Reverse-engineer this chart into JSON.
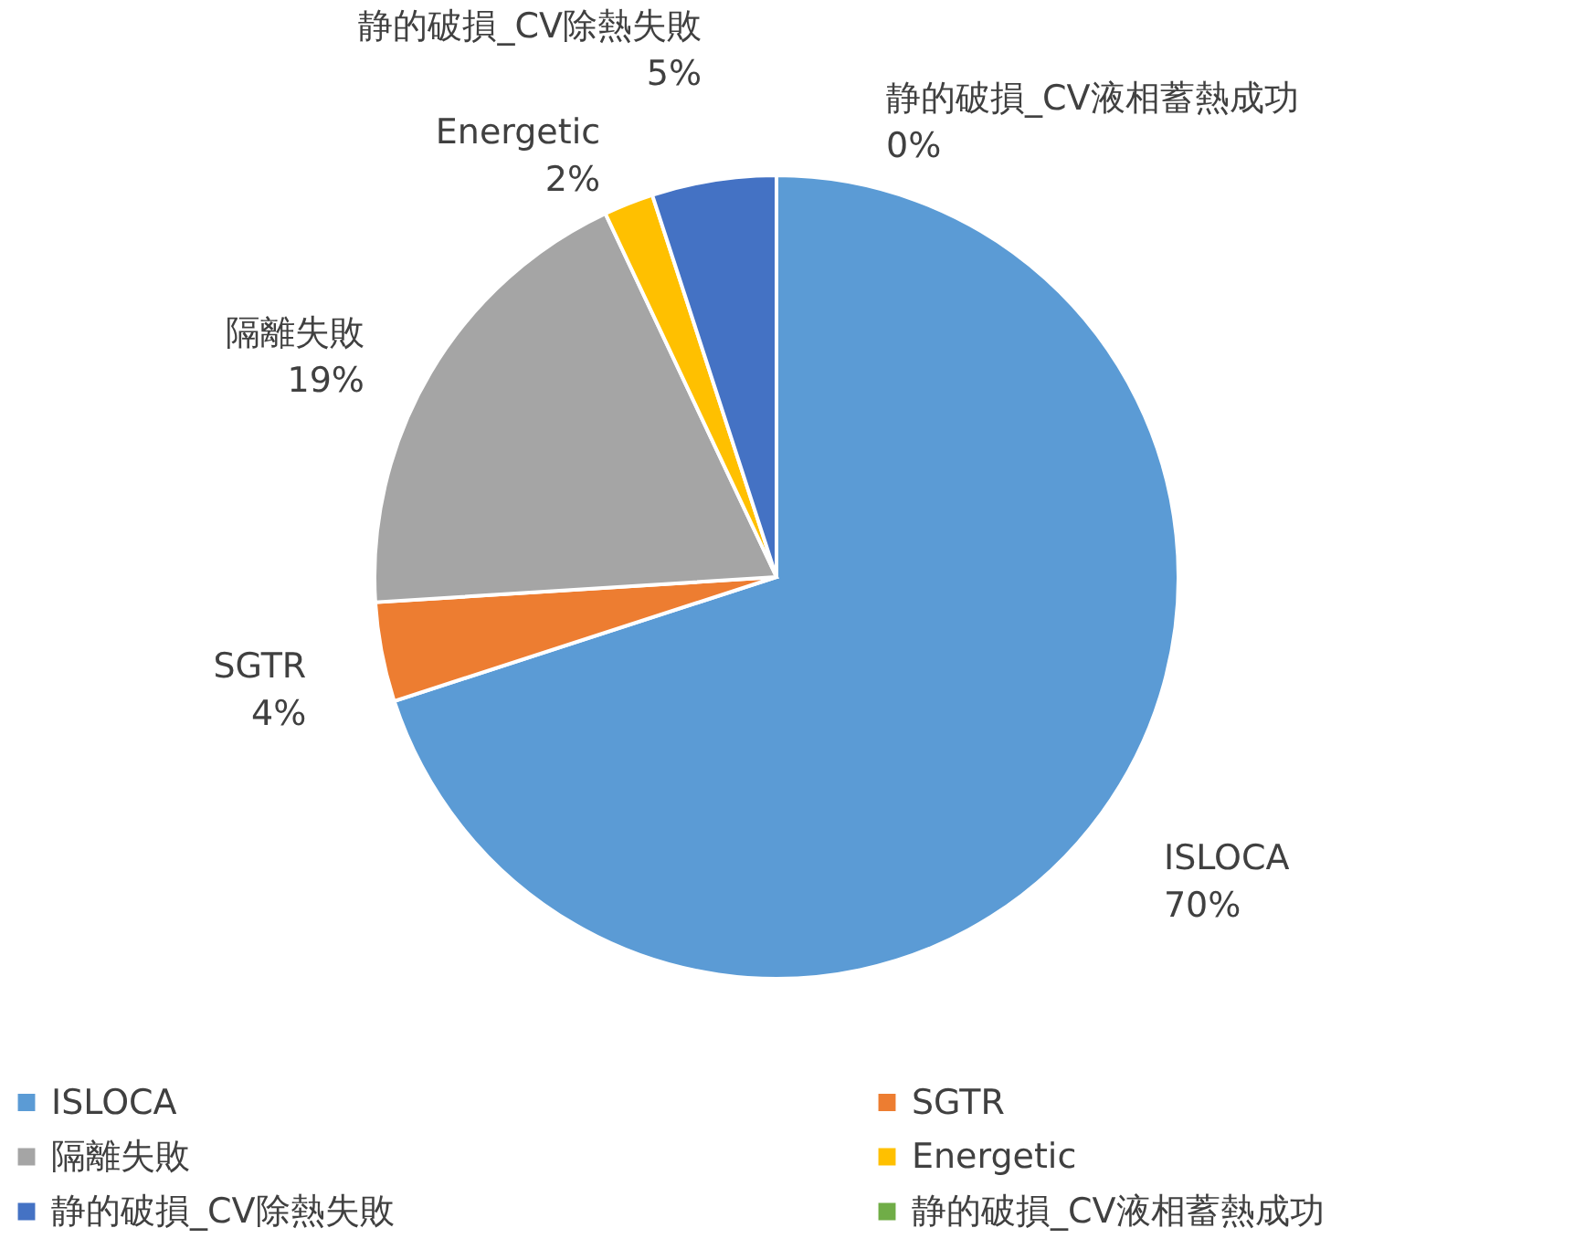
{
  "chart_data": {
    "type": "pie",
    "categories": [
      "ISLOCA",
      "SGTR",
      "隔離失敗",
      "Energetic",
      "静的破損_CV除熱失敗",
      "静的破損_CV液相蓄熱成功"
    ],
    "values": [
      70,
      4,
      19,
      2,
      5,
      0
    ],
    "value_labels": [
      "70%",
      "4%",
      "19%",
      "2%",
      "5%",
      "0%"
    ],
    "colors": [
      "#5b9bd5",
      "#ed7d31",
      "#a5a5a5",
      "#ffc000",
      "#4472c4",
      "#70ad47"
    ],
    "legend": "bottom"
  }
}
